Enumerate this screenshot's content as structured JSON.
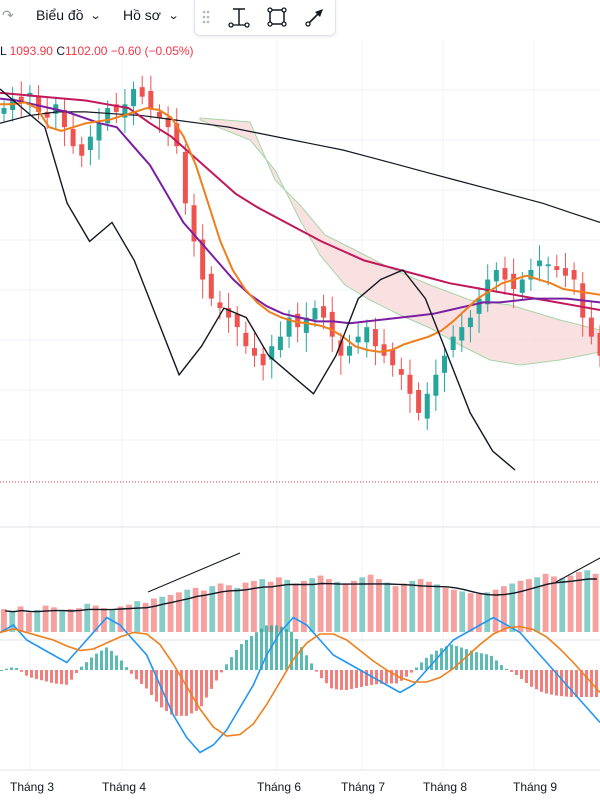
{
  "toolbar": {
    "back_glyph": "↷",
    "chart_menu": "Biểu đồ",
    "profile_menu": "Hồ sơ",
    "tools": [
      "drag-handle-icon",
      "vertical-measure-icon",
      "rectangle-icon",
      "arrow-icon"
    ]
  },
  "ohlc": {
    "low_label": "L",
    "low_value": "1093.90",
    "close_label": "C",
    "close_value": "1102.00",
    "change": "−0.60 (−0.05%)"
  },
  "colors": {
    "up": "#26a69a",
    "down": "#ef5350",
    "ema_fast": "#ef7f1a",
    "ma_purple": "#7b1fa2",
    "ma_crimson": "#c2185b",
    "ma_long": "#131722",
    "cloud_fill": "#f8d7d7",
    "macd_line": "#2196f3",
    "signal_line": "#ef7f1a"
  },
  "chart_data": {
    "type": "line",
    "x_labels": [
      "Tháng 3",
      "Tháng 4",
      "Tháng 6",
      "Tháng 7",
      "Tháng 8",
      "Tháng 9"
    ],
    "series": [
      {
        "kind": "price",
        "values": [
          1170,
          1175,
          1173,
          1178,
          1168,
          1165,
          1172,
          1160,
          1150,
          1145,
          1155,
          1162,
          1170,
          1168,
          1172,
          1180,
          1176,
          1170,
          1165,
          1160,
          1150,
          1120,
          1100,
          1080,
          1070,
          1065,
          1060,
          1055,
          1045,
          1040,
          1035,
          1045,
          1050,
          1060,
          1055,
          1060,
          1065,
          1060,
          1050,
          1040,
          1045,
          1050,
          1055,
          1045,
          1040,
          1035,
          1030,
          1020,
          1010,
          1020,
          1030,
          1040,
          1050,
          1055,
          1060,
          1070,
          1080,
          1085,
          1080,
          1075,
          1080,
          1085,
          1090,
          1088,
          1085,
          1082,
          1080,
          1060,
          1050,
          1040
        ]
      },
      {
        "kind": "ema_fast",
        "values": [
          1172,
          1172,
          1173,
          1170,
          1160,
          1158,
          1160,
          1162,
          1163,
          1164,
          1166,
          1168,
          1170,
          1169,
          1165,
          1155,
          1140,
          1120,
          1100,
          1085,
          1075,
          1068,
          1063,
          1060,
          1058,
          1057,
          1056,
          1054,
          1050,
          1045,
          1043,
          1042,
          1043,
          1046,
          1048,
          1050,
          1053,
          1058,
          1064,
          1070,
          1074,
          1078,
          1080,
          1082,
          1080,
          1078,
          1075,
          1074,
          1073,
          1072
        ]
      },
      {
        "kind": "ma_purple",
        "values": [
          1175,
          1174,
          1172,
          1170,
          1168,
          1165,
          1162,
          1160,
          1150,
          1140,
          1125,
          1110,
          1100,
          1090,
          1080,
          1072,
          1066,
          1062,
          1060,
          1058,
          1058,
          1057,
          1058,
          1059,
          1060,
          1061,
          1062,
          1064,
          1066,
          1068,
          1068,
          1069,
          1070,
          1070,
          1070,
          1069,
          1068
        ]
      },
      {
        "kind": "ma_crimson",
        "values": [
          1178,
          1177,
          1176,
          1175,
          1174,
          1172,
          1170,
          1162,
          1155,
          1145,
          1135,
          1125,
          1118,
          1112,
          1106,
          1100,
          1095,
          1090,
          1087,
          1084,
          1081,
          1078,
          1076,
          1074,
          1072,
          1070,
          1068,
          1066,
          1064
        ]
      },
      {
        "kind": "ma_long",
        "values": [
          1162,
          1166,
          1168,
          1168,
          1167,
          1166,
          1164,
          1162,
          1160,
          1157,
          1154,
          1151,
          1148,
          1144,
          1140,
          1136,
          1132,
          1128,
          1124,
          1120,
          1115,
          1110
        ]
      },
      {
        "kind": "lagging",
        "values": [
          1180,
          1170,
          1160,
          1120,
          1100,
          1110,
          1090,
          1060,
          1030,
          1045,
          1065,
          1060,
          1040,
          1030,
          1020,
          1040,
          1070,
          1080,
          1085,
          1070,
          1040,
          1010,
          990,
          980
        ]
      }
    ],
    "volume": [
      26,
      24,
      29,
      22,
      25,
      30,
      28,
      24,
      26,
      27,
      32,
      30,
      27,
      25,
      29,
      31,
      35,
      33,
      38,
      40,
      42,
      45,
      48,
      50,
      47,
      52,
      55,
      53,
      50,
      56,
      58,
      60,
      57,
      62,
      59,
      55,
      58,
      61,
      64,
      60,
      57,
      54,
      58,
      62,
      65,
      60,
      56,
      52,
      55,
      58,
      60,
      57,
      54,
      50,
      48,
      46,
      44,
      43,
      45,
      48,
      52,
      55,
      58,
      60,
      62,
      66,
      63,
      61,
      64,
      68,
      70,
      66
    ],
    "macd": [
      0.5,
      0.6,
      0.4,
      0.3,
      0.2,
      0.1,
      0.3,
      0.5,
      0.7,
      0.6,
      0.4,
      0.2,
      -0.2,
      -0.6,
      -0.9,
      -1.1,
      -1.0,
      -0.8,
      -0.5,
      -0.2,
      0.2,
      0.5,
      0.7,
      0.6,
      0.4,
      0.2,
      0.1,
      0.0,
      -0.1,
      -0.2,
      -0.3,
      -0.2,
      0.0,
      0.2,
      0.4,
      0.5,
      0.6,
      0.7,
      0.6,
      0.5,
      0.3,
      0.1,
      -0.1,
      -0.3,
      -0.5,
      -0.7
    ]
  }
}
